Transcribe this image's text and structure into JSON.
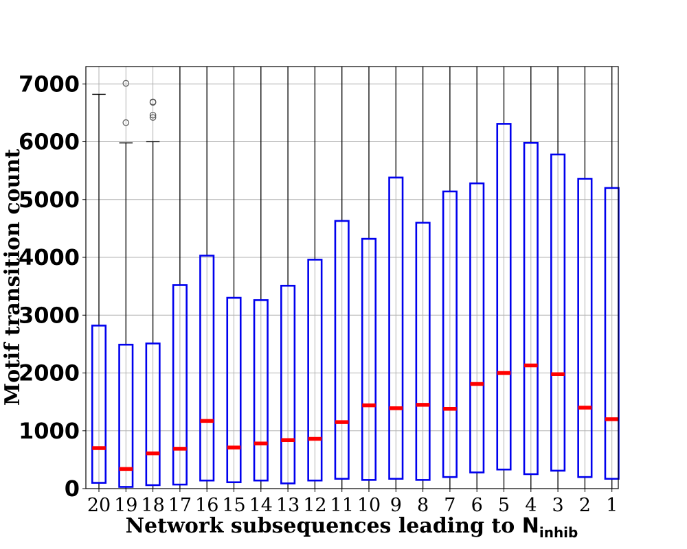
{
  "chart_data": {
    "type": "box",
    "xlabel": "Network subsequences leading to ",
    "xlabel_symbol": "N",
    "xlabel_subscript": "inhib",
    "ylabel": "Motif transition count",
    "ylim": [
      0,
      7300
    ],
    "yticks": [
      "0",
      "1000",
      "2000",
      "3000",
      "4000",
      "5000",
      "6000",
      "7000"
    ],
    "ytick_values": [
      0,
      1000,
      2000,
      3000,
      4000,
      5000,
      6000,
      7000
    ],
    "grid": true,
    "colors": {
      "box": "#0000ee",
      "median": "#ff0000",
      "whisker": "#000000",
      "flier": "#555555",
      "grid": "#b0b0b0"
    },
    "categories": [
      "20",
      "19",
      "18",
      "17",
      "16",
      "15",
      "14",
      "13",
      "12",
      "11",
      "10",
      "9",
      "8",
      "7",
      "6",
      "5",
      "4",
      "3",
      "2",
      "1"
    ],
    "boxes": [
      {
        "q1": 100,
        "median": 700,
        "q3": 2820,
        "whisker_low": 0,
        "whisker_high": 6820,
        "fliers": []
      },
      {
        "q1": 30,
        "median": 340,
        "q3": 2490,
        "whisker_low": 0,
        "whisker_high": 5980,
        "fliers": [
          6330,
          7010
        ]
      },
      {
        "q1": 60,
        "median": 610,
        "q3": 2510,
        "whisker_low": 0,
        "whisker_high": 6000,
        "fliers": [
          6420,
          6460,
          6680,
          6690
        ]
      },
      {
        "q1": 70,
        "median": 690,
        "q3": 3520,
        "whisker_low": 0,
        "whisker_high": 7300,
        "fliers": []
      },
      {
        "q1": 140,
        "median": 1170,
        "q3": 4030,
        "whisker_low": 0,
        "whisker_high": 7300,
        "fliers": []
      },
      {
        "q1": 110,
        "median": 710,
        "q3": 3300,
        "whisker_low": 0,
        "whisker_high": 7300,
        "fliers": []
      },
      {
        "q1": 140,
        "median": 780,
        "q3": 3260,
        "whisker_low": 0,
        "whisker_high": 7300,
        "fliers": []
      },
      {
        "q1": 90,
        "median": 840,
        "q3": 3510,
        "whisker_low": 0,
        "whisker_high": 7300,
        "fliers": []
      },
      {
        "q1": 140,
        "median": 860,
        "q3": 3960,
        "whisker_low": 0,
        "whisker_high": 7300,
        "fliers": []
      },
      {
        "q1": 170,
        "median": 1150,
        "q3": 4630,
        "whisker_low": 0,
        "whisker_high": 7300,
        "fliers": []
      },
      {
        "q1": 150,
        "median": 1440,
        "q3": 4320,
        "whisker_low": 0,
        "whisker_high": 7300,
        "fliers": []
      },
      {
        "q1": 170,
        "median": 1390,
        "q3": 5380,
        "whisker_low": 0,
        "whisker_high": 7300,
        "fliers": []
      },
      {
        "q1": 150,
        "median": 1450,
        "q3": 4600,
        "whisker_low": 0,
        "whisker_high": 7300,
        "fliers": []
      },
      {
        "q1": 200,
        "median": 1380,
        "q3": 5140,
        "whisker_low": 0,
        "whisker_high": 7300,
        "fliers": []
      },
      {
        "q1": 280,
        "median": 1810,
        "q3": 5280,
        "whisker_low": 0,
        "whisker_high": 7300,
        "fliers": []
      },
      {
        "q1": 330,
        "median": 2000,
        "q3": 6310,
        "whisker_low": 0,
        "whisker_high": 7300,
        "fliers": []
      },
      {
        "q1": 250,
        "median": 2130,
        "q3": 5980,
        "whisker_low": 0,
        "whisker_high": 7300,
        "fliers": []
      },
      {
        "q1": 310,
        "median": 1980,
        "q3": 5780,
        "whisker_low": 0,
        "whisker_high": 7300,
        "fliers": []
      },
      {
        "q1": 200,
        "median": 1400,
        "q3": 5360,
        "whisker_low": 0,
        "whisker_high": 7300,
        "fliers": []
      },
      {
        "q1": 170,
        "median": 1200,
        "q3": 5200,
        "whisker_low": 0,
        "whisker_high": 7300,
        "fliers": []
      }
    ]
  }
}
